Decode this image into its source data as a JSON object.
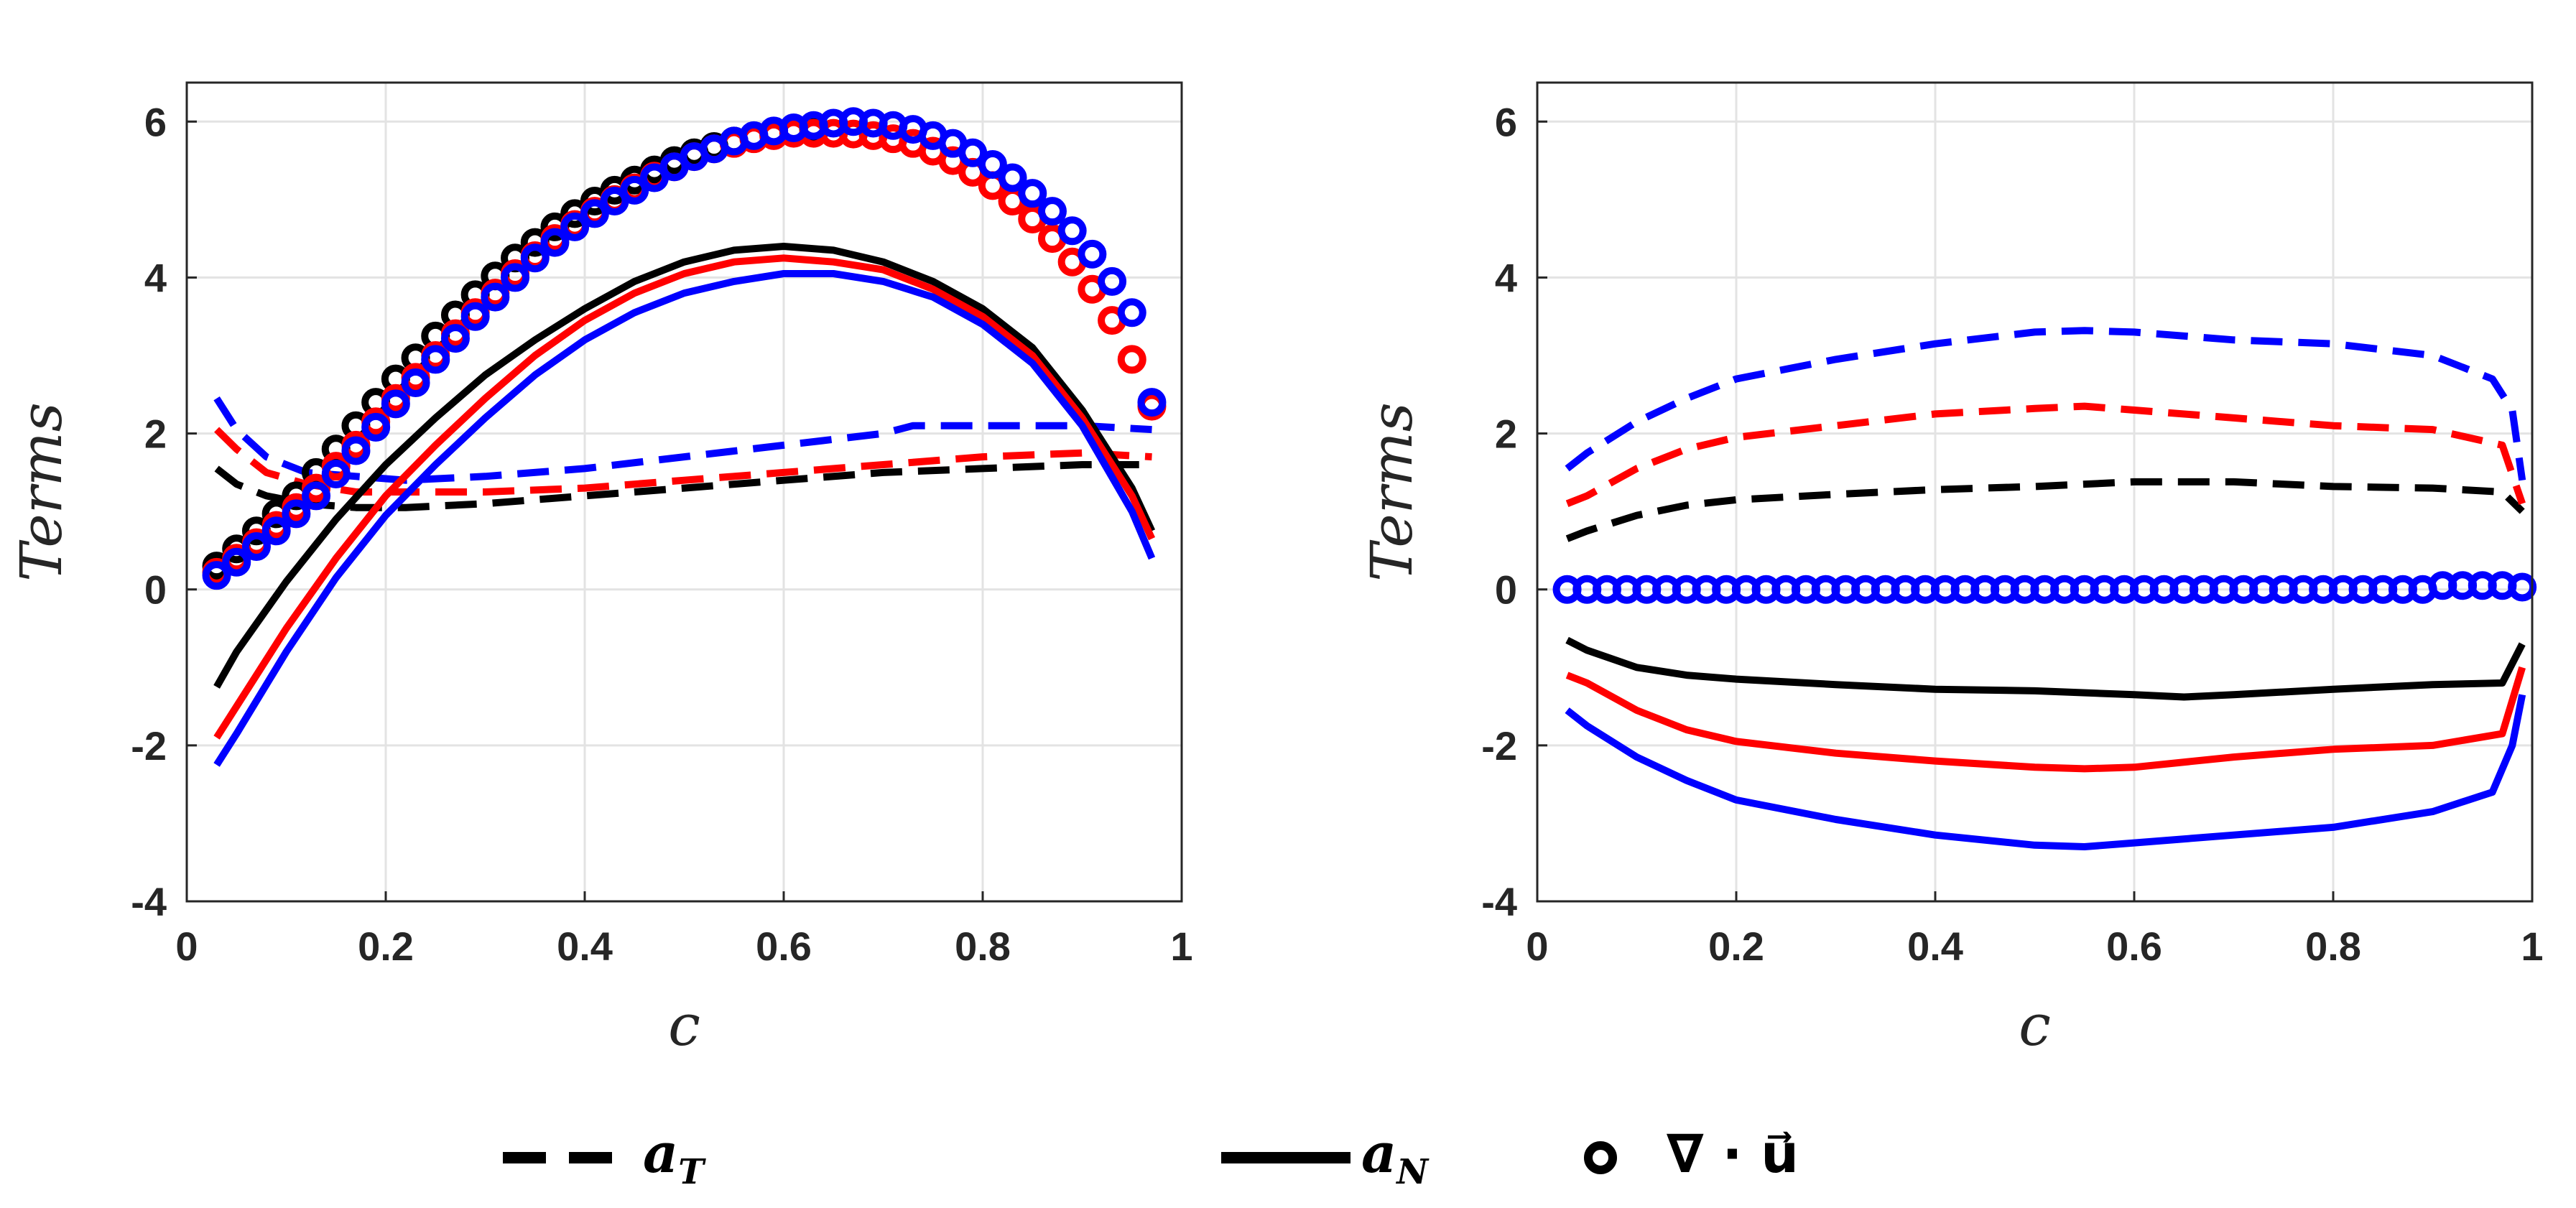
{
  "chart_data": [
    {
      "type": "line",
      "xlabel": "c",
      "ylabel": "Terms",
      "xlim": [
        0,
        1
      ],
      "ylim": [
        -4,
        6.5
      ],
      "xticks": [
        0,
        0.2,
        0.4,
        0.6,
        0.8,
        1
      ],
      "xtick_labels": [
        "0",
        "0.2",
        "0.4",
        "0.6",
        "0.8",
        "1"
      ],
      "yticks": [
        -4,
        -2,
        0,
        2,
        4,
        6
      ],
      "ytick_labels": [
        "-4",
        "-2",
        "0",
        "2",
        "4",
        "6"
      ],
      "grid": true,
      "series": [
        {
          "color": "#000000",
          "style": "dashed",
          "x": [
            0.03,
            0.05,
            0.08,
            0.12,
            0.17,
            0.22,
            0.3,
            0.4,
            0.5,
            0.6,
            0.7,
            0.8,
            0.9,
            0.97
          ],
          "y": [
            1.55,
            1.35,
            1.2,
            1.1,
            1.05,
            1.05,
            1.1,
            1.2,
            1.3,
            1.4,
            1.5,
            1.55,
            1.6,
            1.6
          ]
        },
        {
          "color": "#ff0000",
          "style": "dashed",
          "x": [
            0.03,
            0.05,
            0.08,
            0.12,
            0.17,
            0.22,
            0.3,
            0.4,
            0.5,
            0.6,
            0.7,
            0.8,
            0.9,
            0.97
          ],
          "y": [
            2.05,
            1.8,
            1.5,
            1.35,
            1.25,
            1.25,
            1.25,
            1.3,
            1.4,
            1.5,
            1.6,
            1.7,
            1.75,
            1.7
          ]
        },
        {
          "color": "#0000ff",
          "style": "dashed",
          "x": [
            0.03,
            0.05,
            0.08,
            0.1,
            0.12,
            0.17,
            0.22,
            0.3,
            0.4,
            0.5,
            0.6,
            0.7,
            0.73,
            0.8,
            0.9,
            0.97
          ],
          "y": [
            2.45,
            2.05,
            1.7,
            1.6,
            1.5,
            1.45,
            1.4,
            1.45,
            1.55,
            1.7,
            1.85,
            2.0,
            2.1,
            2.1,
            2.1,
            2.05
          ]
        },
        {
          "color": "#000000",
          "style": "solid",
          "x": [
            0.03,
            0.05,
            0.1,
            0.15,
            0.2,
            0.25,
            0.3,
            0.35,
            0.4,
            0.45,
            0.5,
            0.55,
            0.6,
            0.65,
            0.7,
            0.75,
            0.8,
            0.85,
            0.9,
            0.95,
            0.97
          ],
          "y": [
            -1.25,
            -0.8,
            0.1,
            0.9,
            1.6,
            2.2,
            2.75,
            3.2,
            3.6,
            3.95,
            4.2,
            4.35,
            4.4,
            4.35,
            4.2,
            3.95,
            3.6,
            3.1,
            2.3,
            1.3,
            0.75
          ]
        },
        {
          "color": "#ff0000",
          "style": "solid",
          "x": [
            0.03,
            0.05,
            0.1,
            0.15,
            0.2,
            0.25,
            0.3,
            0.35,
            0.4,
            0.45,
            0.5,
            0.55,
            0.6,
            0.65,
            0.7,
            0.75,
            0.8,
            0.85,
            0.9,
            0.95,
            0.97
          ],
          "y": [
            -1.9,
            -1.5,
            -0.5,
            0.4,
            1.2,
            1.85,
            2.45,
            3.0,
            3.45,
            3.8,
            4.05,
            4.2,
            4.25,
            4.2,
            4.1,
            3.85,
            3.5,
            3.0,
            2.2,
            1.2,
            0.65
          ]
        },
        {
          "color": "#0000ff",
          "style": "solid",
          "x": [
            0.03,
            0.05,
            0.1,
            0.15,
            0.2,
            0.25,
            0.3,
            0.35,
            0.4,
            0.45,
            0.5,
            0.55,
            0.6,
            0.65,
            0.7,
            0.75,
            0.8,
            0.85,
            0.9,
            0.95,
            0.97
          ],
          "y": [
            -2.25,
            -1.85,
            -0.8,
            0.15,
            0.95,
            1.6,
            2.2,
            2.75,
            3.2,
            3.55,
            3.8,
            3.95,
            4.05,
            4.05,
            3.95,
            3.75,
            3.4,
            2.9,
            2.1,
            1.0,
            0.4
          ]
        },
        {
          "color": "#000000",
          "style": "circle",
          "x": [
            0.03,
            0.05,
            0.07,
            0.09,
            0.11,
            0.13,
            0.15,
            0.17,
            0.19,
            0.21,
            0.23,
            0.25,
            0.27,
            0.29,
            0.31,
            0.33,
            0.35,
            0.37,
            0.39,
            0.41,
            0.43,
            0.45,
            0.47,
            0.49,
            0.51,
            0.53,
            0.55,
            0.57,
            0.59,
            0.61,
            0.63
          ],
          "y": [
            0.3,
            0.52,
            0.75,
            0.97,
            1.2,
            1.5,
            1.8,
            2.1,
            2.4,
            2.7,
            2.97,
            3.25,
            3.52,
            3.78,
            4.02,
            4.25,
            4.45,
            4.65,
            4.82,
            4.98,
            5.12,
            5.25,
            5.38,
            5.5,
            5.6,
            5.68,
            5.75,
            5.8,
            5.85,
            5.88,
            5.9
          ]
        },
        {
          "color": "#ff0000",
          "style": "circle",
          "x": [
            0.03,
            0.05,
            0.07,
            0.09,
            0.11,
            0.13,
            0.15,
            0.17,
            0.19,
            0.21,
            0.23,
            0.25,
            0.27,
            0.29,
            0.31,
            0.33,
            0.35,
            0.37,
            0.39,
            0.41,
            0.43,
            0.45,
            0.47,
            0.49,
            0.51,
            0.53,
            0.55,
            0.57,
            0.59,
            0.61,
            0.63,
            0.65,
            0.67,
            0.69,
            0.71,
            0.73,
            0.75,
            0.77,
            0.79,
            0.81,
            0.83,
            0.85,
            0.87,
            0.89,
            0.91,
            0.93,
            0.95,
            0.97
          ],
          "y": [
            0.22,
            0.4,
            0.6,
            0.82,
            1.05,
            1.3,
            1.58,
            1.85,
            2.15,
            2.45,
            2.72,
            3.0,
            3.28,
            3.55,
            3.8,
            4.05,
            4.28,
            4.5,
            4.68,
            4.85,
            5.0,
            5.15,
            5.3,
            5.42,
            5.55,
            5.65,
            5.72,
            5.78,
            5.82,
            5.85,
            5.85,
            5.85,
            5.84,
            5.82,
            5.78,
            5.72,
            5.62,
            5.5,
            5.35,
            5.18,
            4.98,
            4.75,
            4.5,
            4.2,
            3.85,
            3.45,
            2.95,
            2.35
          ]
        },
        {
          "color": "#0000ff",
          "style": "circle",
          "x": [
            0.03,
            0.05,
            0.07,
            0.09,
            0.11,
            0.13,
            0.15,
            0.17,
            0.19,
            0.21,
            0.23,
            0.25,
            0.27,
            0.29,
            0.31,
            0.33,
            0.35,
            0.37,
            0.39,
            0.41,
            0.43,
            0.45,
            0.47,
            0.49,
            0.51,
            0.53,
            0.55,
            0.57,
            0.59,
            0.61,
            0.63,
            0.65,
            0.67,
            0.69,
            0.71,
            0.73,
            0.75,
            0.77,
            0.79,
            0.81,
            0.83,
            0.85,
            0.87,
            0.89,
            0.91,
            0.93,
            0.95,
            0.97
          ],
          "y": [
            0.18,
            0.35,
            0.55,
            0.75,
            0.97,
            1.2,
            1.48,
            1.78,
            2.08,
            2.38,
            2.65,
            2.95,
            3.22,
            3.5,
            3.75,
            4.0,
            4.25,
            4.45,
            4.65,
            4.82,
            4.98,
            5.12,
            5.28,
            5.42,
            5.55,
            5.65,
            5.75,
            5.82,
            5.88,
            5.92,
            5.95,
            5.98,
            6.0,
            5.98,
            5.95,
            5.9,
            5.82,
            5.72,
            5.6,
            5.45,
            5.28,
            5.08,
            4.85,
            4.6,
            4.3,
            3.95,
            3.55,
            2.4
          ]
        }
      ]
    },
    {
      "type": "line",
      "xlabel": "c",
      "ylabel": "Terms",
      "xlim": [
        0,
        1
      ],
      "ylim": [
        -4,
        6.5
      ],
      "xticks": [
        0,
        0.2,
        0.4,
        0.6,
        0.8,
        1
      ],
      "xtick_labels": [
        "0",
        "0.2",
        "0.4",
        "0.6",
        "0.8",
        "1"
      ],
      "yticks": [
        -4,
        -2,
        0,
        2,
        4,
        6
      ],
      "ytick_labels": [
        "-4",
        "-2",
        "0",
        "2",
        "4",
        "6"
      ],
      "grid": true,
      "series": [
        {
          "color": "#000000",
          "style": "dashed",
          "x": [
            0.03,
            0.05,
            0.1,
            0.15,
            0.2,
            0.3,
            0.4,
            0.5,
            0.6,
            0.7,
            0.8,
            0.9,
            0.97,
            0.99
          ],
          "y": [
            0.65,
            0.75,
            0.95,
            1.08,
            1.15,
            1.22,
            1.28,
            1.32,
            1.38,
            1.38,
            1.32,
            1.3,
            1.25,
            1.0
          ]
        },
        {
          "color": "#ff0000",
          "style": "dashed",
          "x": [
            0.03,
            0.05,
            0.1,
            0.15,
            0.2,
            0.3,
            0.4,
            0.5,
            0.55,
            0.6,
            0.7,
            0.8,
            0.9,
            0.97,
            0.99
          ],
          "y": [
            1.1,
            1.2,
            1.55,
            1.8,
            1.95,
            2.1,
            2.25,
            2.32,
            2.35,
            2.3,
            2.2,
            2.1,
            2.05,
            1.85,
            1.1
          ]
        },
        {
          "color": "#0000ff",
          "style": "dashed",
          "x": [
            0.03,
            0.05,
            0.1,
            0.15,
            0.2,
            0.3,
            0.4,
            0.5,
            0.55,
            0.6,
            0.7,
            0.8,
            0.9,
            0.96,
            0.98,
            0.99
          ],
          "y": [
            1.55,
            1.75,
            2.15,
            2.45,
            2.7,
            2.95,
            3.15,
            3.3,
            3.32,
            3.3,
            3.2,
            3.15,
            3.0,
            2.7,
            2.3,
            1.4
          ]
        },
        {
          "color": "#000000",
          "style": "solid",
          "x": [
            0.03,
            0.05,
            0.1,
            0.15,
            0.2,
            0.3,
            0.4,
            0.5,
            0.6,
            0.65,
            0.7,
            0.8,
            0.9,
            0.97,
            0.99
          ],
          "y": [
            -0.65,
            -0.78,
            -1.0,
            -1.1,
            -1.15,
            -1.22,
            -1.28,
            -1.3,
            -1.35,
            -1.38,
            -1.35,
            -1.28,
            -1.22,
            -1.2,
            -0.7
          ]
        },
        {
          "color": "#ff0000",
          "style": "solid",
          "x": [
            0.03,
            0.05,
            0.1,
            0.15,
            0.2,
            0.3,
            0.4,
            0.5,
            0.55,
            0.6,
            0.7,
            0.8,
            0.9,
            0.97,
            0.99
          ],
          "y": [
            -1.1,
            -1.2,
            -1.55,
            -1.8,
            -1.95,
            -2.1,
            -2.2,
            -2.28,
            -2.3,
            -2.28,
            -2.15,
            -2.05,
            -2.0,
            -1.85,
            -1.0
          ]
        },
        {
          "color": "#0000ff",
          "style": "solid",
          "x": [
            0.03,
            0.05,
            0.1,
            0.15,
            0.2,
            0.3,
            0.4,
            0.5,
            0.55,
            0.6,
            0.7,
            0.8,
            0.9,
            0.96,
            0.98,
            0.99
          ],
          "y": [
            -1.55,
            -1.75,
            -2.15,
            -2.45,
            -2.7,
            -2.95,
            -3.15,
            -3.28,
            -3.3,
            -3.25,
            -3.15,
            -3.05,
            -2.85,
            -2.6,
            -2.0,
            -1.35
          ]
        },
        {
          "color": "#0000ff",
          "style": "circle",
          "x": [
            0.03,
            0.05,
            0.07,
            0.09,
            0.11,
            0.13,
            0.15,
            0.17,
            0.19,
            0.21,
            0.23,
            0.25,
            0.27,
            0.29,
            0.31,
            0.33,
            0.35,
            0.37,
            0.39,
            0.41,
            0.43,
            0.45,
            0.47,
            0.49,
            0.51,
            0.53,
            0.55,
            0.57,
            0.59,
            0.61,
            0.63,
            0.65,
            0.67,
            0.69,
            0.71,
            0.73,
            0.75,
            0.77,
            0.79,
            0.81,
            0.83,
            0.85,
            0.87,
            0.89,
            0.91,
            0.93,
            0.95,
            0.97,
            0.99
          ],
          "y": [
            0,
            0,
            0,
            0,
            0,
            0,
            0,
            0,
            0,
            0,
            0,
            0,
            0,
            0,
            0,
            0,
            0,
            0,
            0,
            0,
            0,
            0,
            0,
            0,
            0,
            0,
            0,
            0,
            0,
            0,
            0,
            0,
            0,
            0,
            0,
            0,
            0,
            0,
            0,
            0,
            0,
            0,
            0,
            0,
            0.05,
            0.05,
            0.05,
            0.05,
            0.03
          ]
        }
      ]
    }
  ],
  "legend": {
    "items": [
      {
        "label": "a",
        "sub": "T",
        "style": "dashed",
        "color": "#000000"
      },
      {
        "label": "a",
        "sub": "N",
        "style": "solid",
        "color": "#000000"
      },
      {
        "label": "∇ · u⃗",
        "style": "circle",
        "color": "#000000"
      }
    ]
  }
}
